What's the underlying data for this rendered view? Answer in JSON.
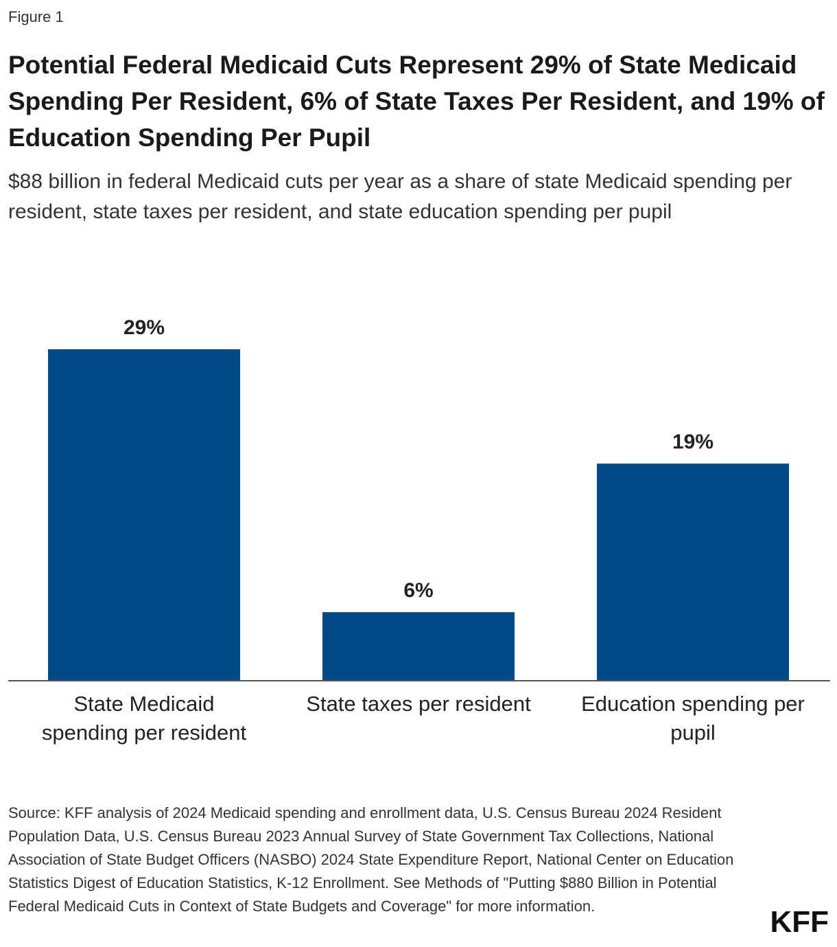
{
  "figure_label": "Figure 1",
  "title": "Potential Federal Medicaid Cuts Represent 29% of State Medicaid Spending Per Resident, 6% of State Taxes Per Resident, and 19% of Education Spending Per Pupil",
  "subtitle": "$88 billion in federal Medicaid cuts per year as a share of state Medicaid spending per resident, state taxes per resident, and state education spending per pupil",
  "source": "Source: KFF analysis of 2024 Medicaid spending and enrollment data, U.S. Census Bureau 2024 Resident Population Data, U.S. Census Bureau 2023 Annual Survey of State Government Tax Collections, National Association of State Budget Officers (NASBO) 2024 State Expenditure Report, National Center on Education Statistics Digest of Education Statistics, K-12 Enrollment. See Methods of \"Putting $880 Billion in Potential Federal Medicaid Cuts in Context of State Budgets and Coverage\" for more information.",
  "logo": "KFF",
  "colors": {
    "bar": "#004a87",
    "axis": "#555555",
    "label": "#222222"
  },
  "chart_data": {
    "type": "bar",
    "categories": [
      [
        "State Medicaid",
        "spending per resident"
      ],
      [
        "State taxes per resident"
      ],
      [
        "Education spending per",
        "pupil"
      ]
    ],
    "values": [
      29,
      6,
      19
    ],
    "data_labels": [
      "29%",
      "6%",
      "19%"
    ],
    "title": "",
    "xlabel": "",
    "ylabel": "",
    "ylim": [
      0,
      29
    ],
    "grid": false
  }
}
